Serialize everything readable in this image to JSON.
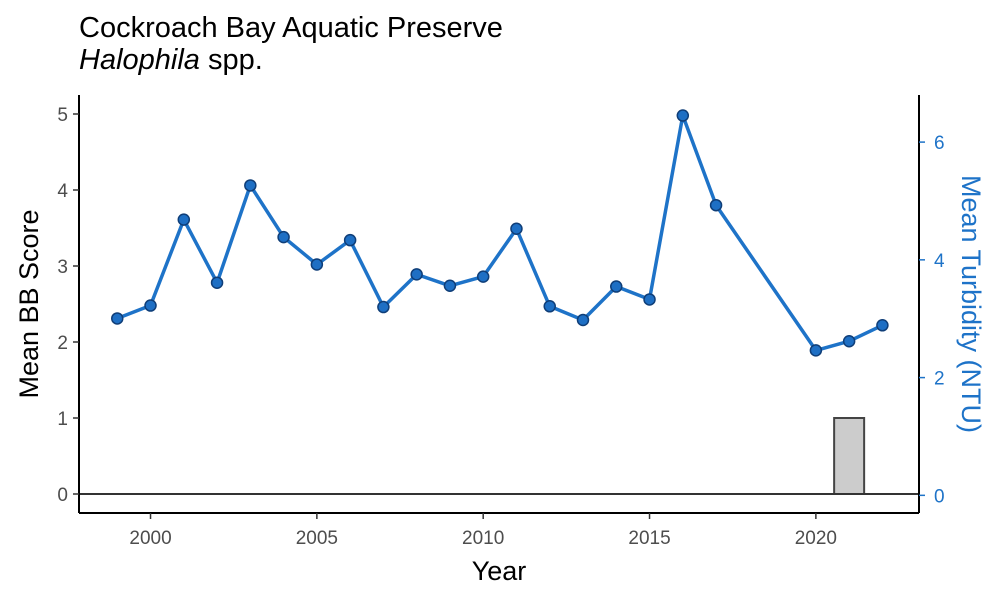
{
  "chart_data": {
    "type": "bar+line",
    "title": "Cockroach Bay Aquatic Preserve",
    "subtitle_italic": "Halophila",
    "subtitle_rest": " spp.",
    "xlabel": "Year",
    "ylabel_left": "Mean BB Score",
    "ylabel_right": "Mean Turbidity (NTU)",
    "x_ticks": [
      2000,
      2005,
      2010,
      2015,
      2020
    ],
    "y_left_ticks": [
      0,
      1,
      2,
      3,
      4,
      5
    ],
    "y_right_ticks": [
      0,
      2,
      4,
      6
    ],
    "xlim": [
      1997.85,
      2023.1
    ],
    "ylim_left": [
      -0.25,
      5.25
    ],
    "ylim_right": [
      -0.3,
      6.8
    ],
    "bars": [
      {
        "x": 2021,
        "value": 1.0
      }
    ],
    "series": [
      {
        "x": [
          1999,
          2000,
          2001,
          2002,
          2003,
          2004,
          2005,
          2006,
          2007,
          2008,
          2009,
          2010,
          2011,
          2012,
          2013,
          2014,
          2015,
          2016,
          2017,
          2020,
          2021,
          2022
        ],
        "values": [
          2.31,
          2.48,
          3.61,
          2.78,
          4.06,
          3.38,
          3.02,
          3.34,
          2.46,
          2.89,
          2.74,
          2.86,
          3.49,
          2.47,
          2.29,
          2.73,
          2.56,
          4.98,
          3.8,
          1.89,
          2.01,
          2.22
        ]
      }
    ],
    "colors": {
      "line": "#1e73c8",
      "point_fill": "#1e6fc4",
      "point_stroke": "#0f3e78",
      "bar_fill": "#cccccc",
      "bar_stroke": "#444444",
      "right_axis": "#1e73c8",
      "zero_line": "#333333"
    },
    "grid": false,
    "legend": "none"
  }
}
